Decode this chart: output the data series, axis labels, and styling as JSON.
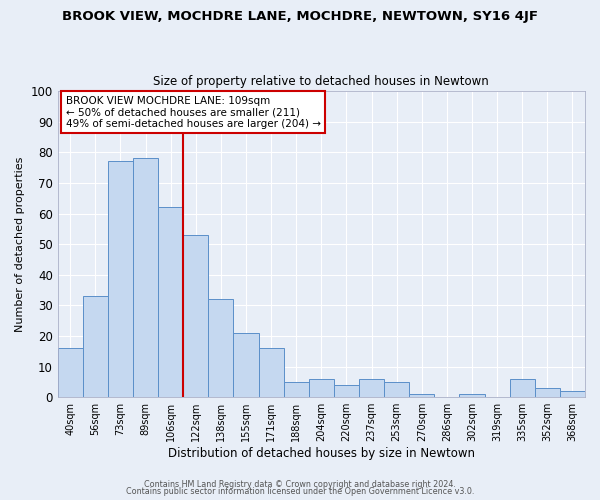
{
  "title": "BROOK VIEW, MOCHDRE LANE, MOCHDRE, NEWTOWN, SY16 4JF",
  "subtitle": "Size of property relative to detached houses in Newtown",
  "xlabel": "Distribution of detached houses by size in Newtown",
  "ylabel": "Number of detached properties",
  "bar_labels": [
    "40sqm",
    "56sqm",
    "73sqm",
    "89sqm",
    "106sqm",
    "122sqm",
    "138sqm",
    "155sqm",
    "171sqm",
    "188sqm",
    "204sqm",
    "220sqm",
    "237sqm",
    "253sqm",
    "270sqm",
    "286sqm",
    "302sqm",
    "319sqm",
    "335sqm",
    "352sqm",
    "368sqm"
  ],
  "bar_values": [
    16,
    33,
    77,
    78,
    62,
    53,
    32,
    21,
    16,
    5,
    6,
    4,
    6,
    5,
    1,
    0,
    1,
    0,
    6,
    3,
    2
  ],
  "bar_color": "#c5d8f0",
  "bar_edge_color": "#5b8fc9",
  "vline_x": 4.5,
  "vline_color": "#cc0000",
  "annotation_title": "BROOK VIEW MOCHDRE LANE: 109sqm",
  "annotation_line1": "← 50% of detached houses are smaller (211)",
  "annotation_line2": "49% of semi-detached houses are larger (204) →",
  "annotation_box_color": "#ffffff",
  "annotation_box_edge": "#cc0000",
  "background_color": "#e8eef7",
  "grid_color": "#ffffff",
  "ylim": [
    0,
    100
  ],
  "yticks": [
    0,
    10,
    20,
    30,
    40,
    50,
    60,
    70,
    80,
    90,
    100
  ],
  "title_fontsize": 9.5,
  "subtitle_fontsize": 8.5,
  "footer1": "Contains HM Land Registry data © Crown copyright and database right 2024.",
  "footer2": "Contains public sector information licensed under the Open Government Licence v3.0."
}
